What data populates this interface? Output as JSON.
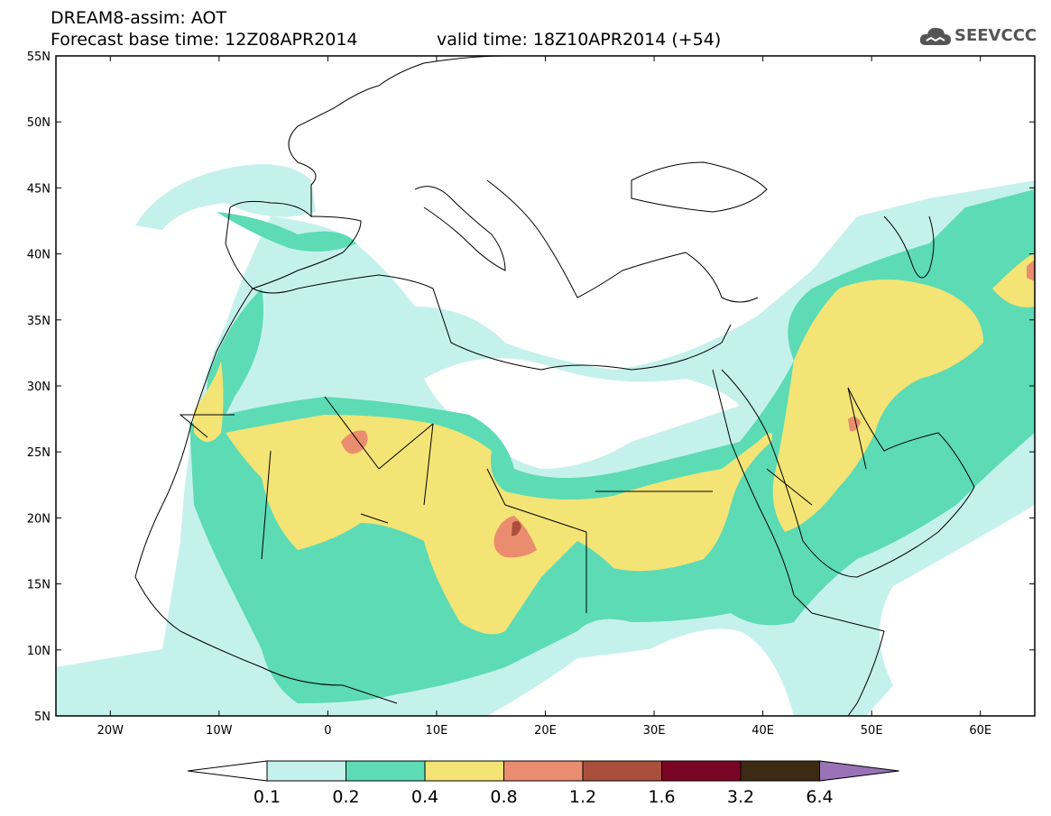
{
  "header": {
    "line1": "DREAM8-assim: AOT",
    "line2": "Forecast base time: 12Z08APR2014",
    "line3": "valid time: 18Z10APR2014 (+54)"
  },
  "logo": {
    "text": "SEEVCCC",
    "icon": "cloud-icon",
    "color": "#555555"
  },
  "map": {
    "lon_range": [
      -25,
      65
    ],
    "lat_range": [
      5,
      55
    ],
    "lat_ticks": [
      "55N",
      "50N",
      "45N",
      "40N",
      "35N",
      "30N",
      "25N",
      "20N",
      "15N",
      "10N",
      "5N"
    ],
    "lon_ticks": [
      "20W",
      "10W",
      "0",
      "10E",
      "20E",
      "30E",
      "40E",
      "50E",
      "60E"
    ],
    "field_colors": {
      "c1": "#c5f1ec",
      "c2": "#5cdbb5",
      "c3": "#f3e475",
      "c4": "#ea8c6e",
      "c5": "#aa4f3c"
    }
  },
  "colorbar": {
    "labels": [
      "0.1",
      "0.2",
      "0.4",
      "0.8",
      "1.2",
      "1.6",
      "3.2",
      "6.4"
    ],
    "colors": [
      "#c5f1ec",
      "#5cdbb5",
      "#f3e475",
      "#ea8c6e",
      "#aa4f3c",
      "#7a0524",
      "#3d2a14"
    ],
    "low_color": "#ffffff",
    "high_color": "#9a72b8"
  }
}
